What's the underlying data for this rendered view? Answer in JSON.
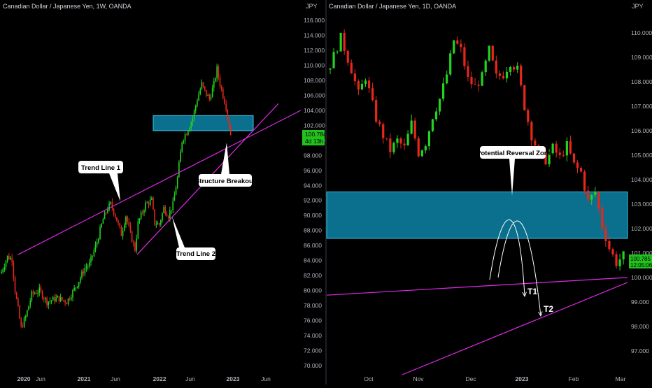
{
  "colors": {
    "up": "#22d41e",
    "down": "#e8261c",
    "zone_fill": "#0b6f8e",
    "zone_stroke": "#39c2e6",
    "trendline": "#e02ae6",
    "axis_text": "#b2b5be",
    "price_tag": "#22c21e",
    "background": "#000000"
  },
  "chart_data": [
    {
      "type": "candlestick",
      "title": "Canadian Dollar / Japanese Yen, 1W, OANDA",
      "currency": "JPY",
      "x_ticks": [
        "2020",
        "Jun",
        "2021",
        "Jun",
        "2022",
        "Jun",
        "2023",
        "Jun"
      ],
      "y_ticks": [
        "70.000",
        "72.000",
        "74.000",
        "76.000",
        "78.000",
        "80.000",
        "82.000",
        "84.000",
        "86.000",
        "88.000",
        "90.000",
        "92.000",
        "94.000",
        "96.000",
        "98.000",
        "100.000",
        "102.000",
        "104.000",
        "106.000",
        "108.000",
        "110.000",
        "112.000",
        "114.000",
        "116.000"
      ],
      "ylim": [
        69.0,
        117.2
      ],
      "last_price": "100.784",
      "countdown": "4d 13h",
      "zone": {
        "low": 101.3,
        "high": 103.3
      },
      "trend_lines": [
        {
          "label": "Trend Line 1",
          "from": [
            0,
            84.8
          ],
          "to": [
            208,
            104.2
          ]
        },
        {
          "label": "Trend Line 2",
          "from": [
            94,
            84.8
          ],
          "to": [
            195,
            104.8
          ]
        }
      ],
      "annotations": [
        "Trend Line 1",
        "Trend Line 2",
        "Structure Breakout"
      ],
      "anchors": [
        [
          0,
          82.5
        ],
        [
          4,
          84.5
        ],
        [
          7,
          84.2
        ],
        [
          9,
          80
        ],
        [
          13,
          75
        ],
        [
          16,
          76.5
        ],
        [
          20,
          79.5
        ],
        [
          25,
          80
        ],
        [
          30,
          78.5
        ],
        [
          37,
          79
        ],
        [
          43,
          78.5
        ],
        [
          49,
          80.5
        ],
        [
          55,
          83
        ],
        [
          58,
          83.5
        ],
        [
          63,
          86.5
        ],
        [
          67,
          89.5
        ],
        [
          70,
          91
        ],
        [
          72,
          91.5
        ],
        [
          75,
          90
        ],
        [
          79,
          87.5
        ],
        [
          82,
          90
        ],
        [
          85,
          87.5
        ],
        [
          88,
          85.5
        ],
        [
          90,
          89
        ],
        [
          95,
          91.5
        ],
        [
          99,
          92
        ],
        [
          101,
          89
        ],
        [
          104,
          88.8
        ],
        [
          107,
          91
        ],
        [
          110,
          90
        ],
        [
          113,
          91.5
        ],
        [
          116,
          95
        ],
        [
          119,
          100
        ],
        [
          123,
          101.5
        ],
        [
          126,
          103
        ],
        [
          129,
          105.5
        ],
        [
          132,
          107.5
        ],
        [
          134,
          106.5
        ],
        [
          137,
          105.5
        ],
        [
          140,
          107.5
        ],
        [
          142,
          109.5
        ],
        [
          144,
          107.5
        ],
        [
          146,
          106
        ],
        [
          148,
          104.5
        ],
        [
          150,
          102
        ],
        [
          151,
          100.8
        ]
      ]
    },
    {
      "type": "candlestick",
      "title": "Canadian Dollar / Japanese Yen, 1D, OANDA",
      "currency": "JPY",
      "x_ticks": [
        "Oct",
        "Nov",
        "Dec",
        "2023",
        "Feb",
        "Mar"
      ],
      "y_ticks": [
        "97.000",
        "98.000",
        "99.000",
        "100.000",
        "101.000",
        "102.000",
        "103.000",
        "104.000",
        "105.000",
        "106.000",
        "107.000",
        "108.000",
        "109.000",
        "110.000"
      ],
      "ylim": [
        96.5,
        110.25
      ],
      "last_price": "100.785",
      "countdown": "12:05:06",
      "zone": {
        "low": 101.6,
        "high": 103.5
      },
      "trend_lines": [
        {
          "label": "",
          "from": [
            0,
            99.28
          ],
          "to": [
            163,
            100.07
          ]
        },
        {
          "label": "",
          "from": [
            37,
            96.3
          ],
          "to": [
            163,
            99.9
          ]
        }
      ],
      "annotations": [
        "Potential Reversal Zone",
        "T1",
        "T2"
      ],
      "targets": [
        {
          "label": "T1",
          "value": 99.1
        },
        {
          "label": "T2",
          "value": 98.5
        }
      ],
      "anchors": [
        [
          0,
          108.7
        ],
        [
          3,
          109.8
        ],
        [
          6,
          108.5
        ],
        [
          8,
          107.5
        ],
        [
          10,
          108.2
        ],
        [
          13,
          106.5
        ],
        [
          15,
          105.8
        ],
        [
          17,
          105.2
        ],
        [
          19,
          105.6
        ],
        [
          21,
          105.3
        ],
        [
          23,
          106.3
        ],
        [
          25,
          105.1
        ],
        [
          27,
          105.5
        ],
        [
          29,
          106.6
        ],
        [
          31,
          107.3
        ],
        [
          33,
          108.3
        ],
        [
          35,
          109.7
        ],
        [
          37,
          109.3
        ],
        [
          39,
          108.1
        ],
        [
          41,
          107.8
        ],
        [
          43,
          108.2
        ],
        [
          45,
          109.3
        ],
        [
          47,
          108.2
        ],
        [
          49,
          108.3
        ],
        [
          51,
          108.8
        ],
        [
          53,
          108.5
        ],
        [
          55,
          107.0
        ],
        [
          57,
          105.8
        ],
        [
          59,
          105.1
        ],
        [
          61,
          104.8
        ],
        [
          63,
          105.3
        ],
        [
          65,
          104.9
        ],
        [
          67,
          105.4
        ],
        [
          69,
          104.6
        ],
        [
          71,
          104.3
        ],
        [
          73,
          103.1
        ],
        [
          75,
          103.5
        ],
        [
          77,
          102.1
        ],
        [
          79,
          101.2
        ],
        [
          81,
          100.6
        ],
        [
          83,
          100.9
        ]
      ]
    }
  ]
}
